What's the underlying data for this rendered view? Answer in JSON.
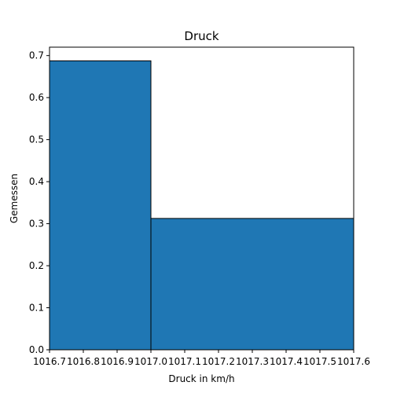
{
  "chart_data": {
    "type": "bar",
    "subtype": "histogram",
    "title": "Druck",
    "xlabel": "Druck in km/h",
    "ylabel": "Gemessen",
    "bins": [
      {
        "x0": 1016.7,
        "x1": 1017.0,
        "value": 0.6875
      },
      {
        "x0": 1017.0,
        "x1": 1017.6,
        "value": 0.3125
      }
    ],
    "xlim": [
      1016.7,
      1017.6
    ],
    "ylim": [
      0,
      0.72
    ],
    "xticks": [
      1016.7,
      1016.8,
      1016.9,
      1017.0,
      1017.1,
      1017.2,
      1017.3,
      1017.4,
      1017.5,
      1017.6
    ],
    "xtick_labels": [
      "1016.7",
      "1016.8",
      "1016.9",
      "1017.0",
      "1017.1",
      "1017.2",
      "1017.3",
      "1017.4",
      "1017.5",
      "1017.6"
    ],
    "yticks": [
      0.0,
      0.1,
      0.2,
      0.3,
      0.4,
      0.5,
      0.6,
      0.7
    ],
    "ytick_labels": [
      "0.0",
      "0.1",
      "0.2",
      "0.3",
      "0.4",
      "0.5",
      "0.6",
      "0.7"
    ],
    "bar_color": "#1f77b4",
    "edge_color": "#000000",
    "grid": false,
    "legend": false
  }
}
